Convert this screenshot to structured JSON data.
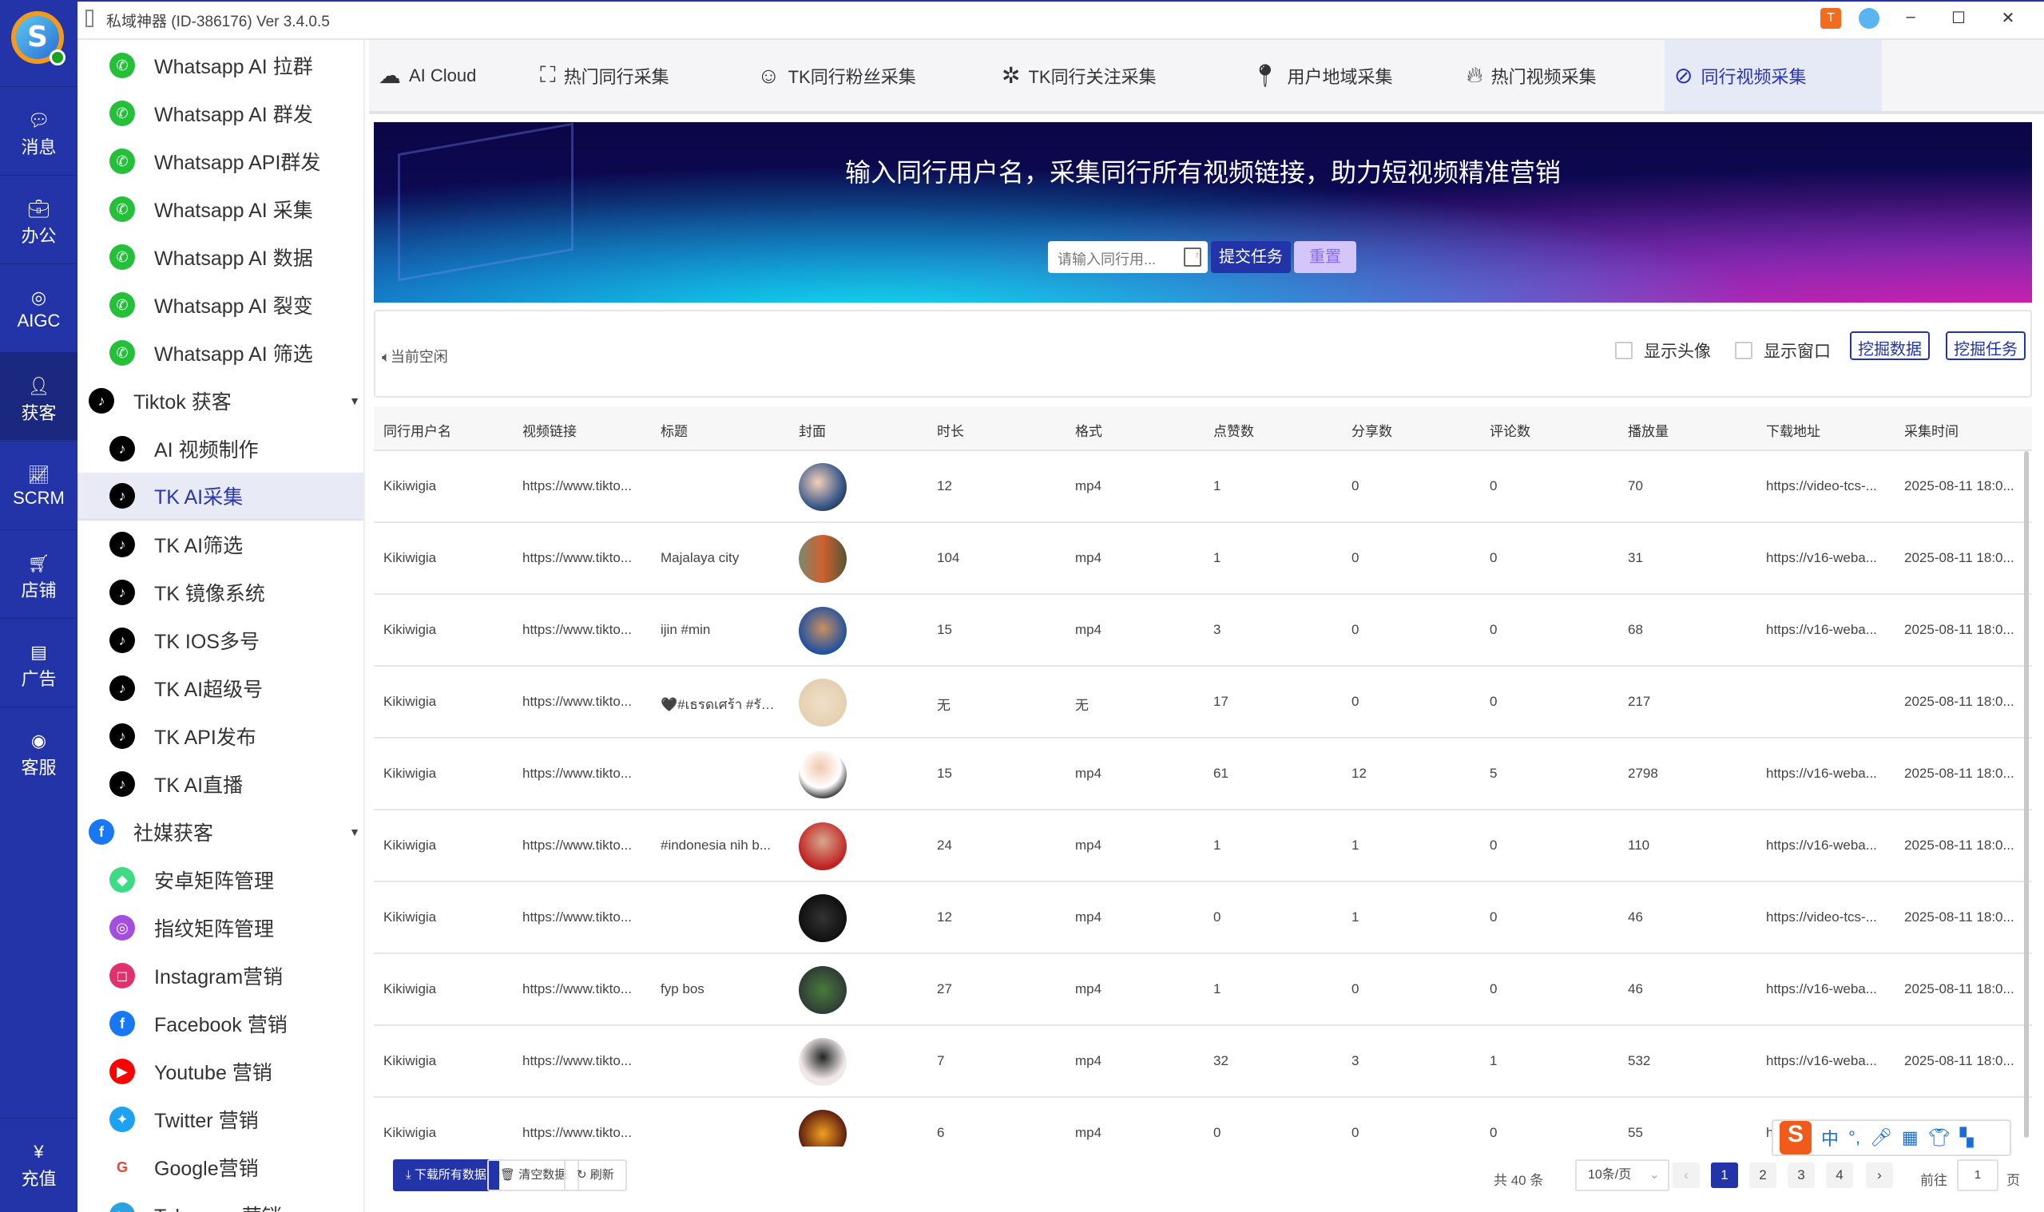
{
  "window": {
    "title": "私域神器  (ID-386176)  Ver 3.4.0.5",
    "controls": [
      "minimize",
      "maximize",
      "close"
    ]
  },
  "rail": {
    "items": [
      {
        "label": "消息",
        "icon": "chat-bubble-icon"
      },
      {
        "label": "办公",
        "icon": "briefcase-icon"
      },
      {
        "label": "AIGC",
        "icon": "aigc-icon"
      },
      {
        "label": "获客",
        "icon": "user-add-icon",
        "active": true
      },
      {
        "label": "SCRM",
        "icon": "chart-line-icon"
      },
      {
        "label": "店铺",
        "icon": "cart-icon"
      },
      {
        "label": "广告",
        "icon": "ads-icon"
      },
      {
        "label": "客服",
        "icon": "ai-chat-icon"
      }
    ],
    "recharge": {
      "label": "充值",
      "icon": "yen-icon"
    }
  },
  "submenu": {
    "items": [
      {
        "label": "Whatsapp AI 拉群",
        "icon": "whatsapp",
        "type": "child"
      },
      {
        "label": "Whatsapp AI 群发",
        "icon": "whatsapp",
        "type": "child"
      },
      {
        "label": "Whatsapp API群发",
        "icon": "whatsapp",
        "type": "child"
      },
      {
        "label": "Whatsapp AI 采集",
        "icon": "whatsapp",
        "type": "child"
      },
      {
        "label": "Whatsapp AI 数据",
        "icon": "whatsapp",
        "type": "child"
      },
      {
        "label": "Whatsapp AI 裂变",
        "icon": "whatsapp",
        "type": "child"
      },
      {
        "label": "Whatsapp AI 筛选",
        "icon": "whatsapp",
        "type": "child"
      },
      {
        "label": "Tiktok 获客",
        "icon": "tiktok",
        "type": "group"
      },
      {
        "label": "AI 视频制作",
        "icon": "tiktok",
        "type": "child"
      },
      {
        "label": "TK AI采集",
        "icon": "tiktok",
        "type": "child",
        "active": true
      },
      {
        "label": "TK AI筛选",
        "icon": "tiktok",
        "type": "child"
      },
      {
        "label": "TK 镜像系统",
        "icon": "tiktok",
        "type": "child"
      },
      {
        "label": "TK IOS多号",
        "icon": "tiktok",
        "type": "child"
      },
      {
        "label": "TK AI超级号",
        "icon": "tiktok",
        "type": "child"
      },
      {
        "label": "TK API发布",
        "icon": "tiktok",
        "type": "child"
      },
      {
        "label": "TK AI直播",
        "icon": "tiktok",
        "type": "child"
      },
      {
        "label": "社媒获客",
        "icon": "facebook",
        "type": "group"
      },
      {
        "label": "安卓矩阵管理",
        "icon": "android",
        "type": "child"
      },
      {
        "label": "指纹矩阵管理",
        "icon": "fingerprint",
        "type": "child"
      },
      {
        "label": "Instagram营销",
        "icon": "instagram",
        "type": "child"
      },
      {
        "label": "Facebook 营销",
        "icon": "facebook",
        "type": "child"
      },
      {
        "label": "Youtube 营销",
        "icon": "youtube",
        "type": "child"
      },
      {
        "label": "Twitter 营销",
        "icon": "twitter",
        "type": "child"
      },
      {
        "label": "Google营销",
        "icon": "google",
        "type": "child"
      },
      {
        "label": "Telegram 营销",
        "icon": "telegram",
        "type": "child"
      }
    ]
  },
  "tabs": [
    {
      "label": "AI Cloud",
      "icon": "ai-cloud-icon"
    },
    {
      "label": "热门同行采集",
      "icon": "group-scan-icon"
    },
    {
      "label": "TK同行粉丝采集",
      "icon": "fans-icon"
    },
    {
      "label": "TK同行关注采集",
      "icon": "follow-icon"
    },
    {
      "label": "用户地域采集",
      "icon": "location-pin-icon"
    },
    {
      "label": "热门视频采集",
      "icon": "flame-icon"
    },
    {
      "label": "同行视频采集",
      "icon": "video-off-icon",
      "active": true
    }
  ],
  "banner": {
    "headline": "输入同行用户名，采集同行所有视频链接，助力短视频精准营销",
    "input_placeholder": "请输入同行用...",
    "submit_label": "提交任务",
    "reset_label": "重置"
  },
  "status": {
    "text": "当前空闲",
    "show_avatar_label": "显示头像",
    "show_avatar_checked": false,
    "show_window_label": "显示窗口",
    "show_window_checked": false,
    "mine_data_label": "挖掘数据",
    "mine_task_label": "挖掘任务"
  },
  "table": {
    "columns": [
      "同行用户名",
      "视频链接",
      "标题",
      "封面",
      "时长",
      "格式",
      "点赞数",
      "分享数",
      "评论数",
      "播放量",
      "下载地址",
      "采集时间"
    ],
    "rows": [
      [
        "Kikiwigia",
        "https://www.tikto...",
        "",
        "",
        "12",
        "mp4",
        "1",
        "0",
        "0",
        "70",
        "https://video-tcs-...",
        "2025-08-11 18:0..."
      ],
      [
        "Kikiwigia",
        "https://www.tikto...",
        "Majalaya city",
        "",
        "104",
        "mp4",
        "1",
        "0",
        "0",
        "31",
        "https://v16-weba...",
        "2025-08-11 18:0..."
      ],
      [
        "Kikiwigia",
        "https://www.tikto...",
        "ijin #min",
        "",
        "15",
        "mp4",
        "3",
        "0",
        "0",
        "68",
        "https://v16-weba...",
        "2025-08-11 18:0..."
      ],
      [
        "Kikiwigia",
        "https://www.tikto...",
        "🖤#เธรดเศร้า #รัก...",
        "",
        "无",
        "无",
        "17",
        "0",
        "0",
        "217",
        "",
        "2025-08-11 18:0..."
      ],
      [
        "Kikiwigia",
        "https://www.tikto...",
        "",
        "",
        "15",
        "mp4",
        "61",
        "12",
        "5",
        "2798",
        "https://v16-weba...",
        "2025-08-11 18:0..."
      ],
      [
        "Kikiwigia",
        "https://www.tikto...",
        "#indonesia nih b...",
        "",
        "24",
        "mp4",
        "1",
        "1",
        "0",
        "110",
        "https://v16-weba...",
        "2025-08-11 18:0..."
      ],
      [
        "Kikiwigia",
        "https://www.tikto...",
        "",
        "",
        "12",
        "mp4",
        "0",
        "1",
        "0",
        "46",
        "https://video-tcs-...",
        "2025-08-11 18:0..."
      ],
      [
        "Kikiwigia",
        "https://www.tikto...",
        "fyp bos",
        "",
        "27",
        "mp4",
        "1",
        "0",
        "0",
        "46",
        "https://v16-weba...",
        "2025-08-11 18:0..."
      ],
      [
        "Kikiwigia",
        "https://www.tikto...",
        "",
        "",
        "7",
        "mp4",
        "32",
        "3",
        "1",
        "532",
        "https://v16-weba...",
        "2025-08-11 18:0..."
      ],
      [
        "Kikiwigia",
        "https://www.tikto...",
        "",
        "",
        "6",
        "mp4",
        "0",
        "0",
        "0",
        "55",
        "h...",
        ""
      ]
    ]
  },
  "footer": {
    "download_all": "下载所有数据",
    "clear": "清空数据",
    "refresh": "刷新",
    "total": "共 40 条",
    "page_size": "10条/页",
    "pages": [
      "1",
      "2",
      "3",
      "4"
    ],
    "current_page": "1",
    "goto_label": "前往",
    "goto_value": "1",
    "page_suffix": "页"
  },
  "ime": {
    "lang": "中",
    "punct": "°,"
  }
}
